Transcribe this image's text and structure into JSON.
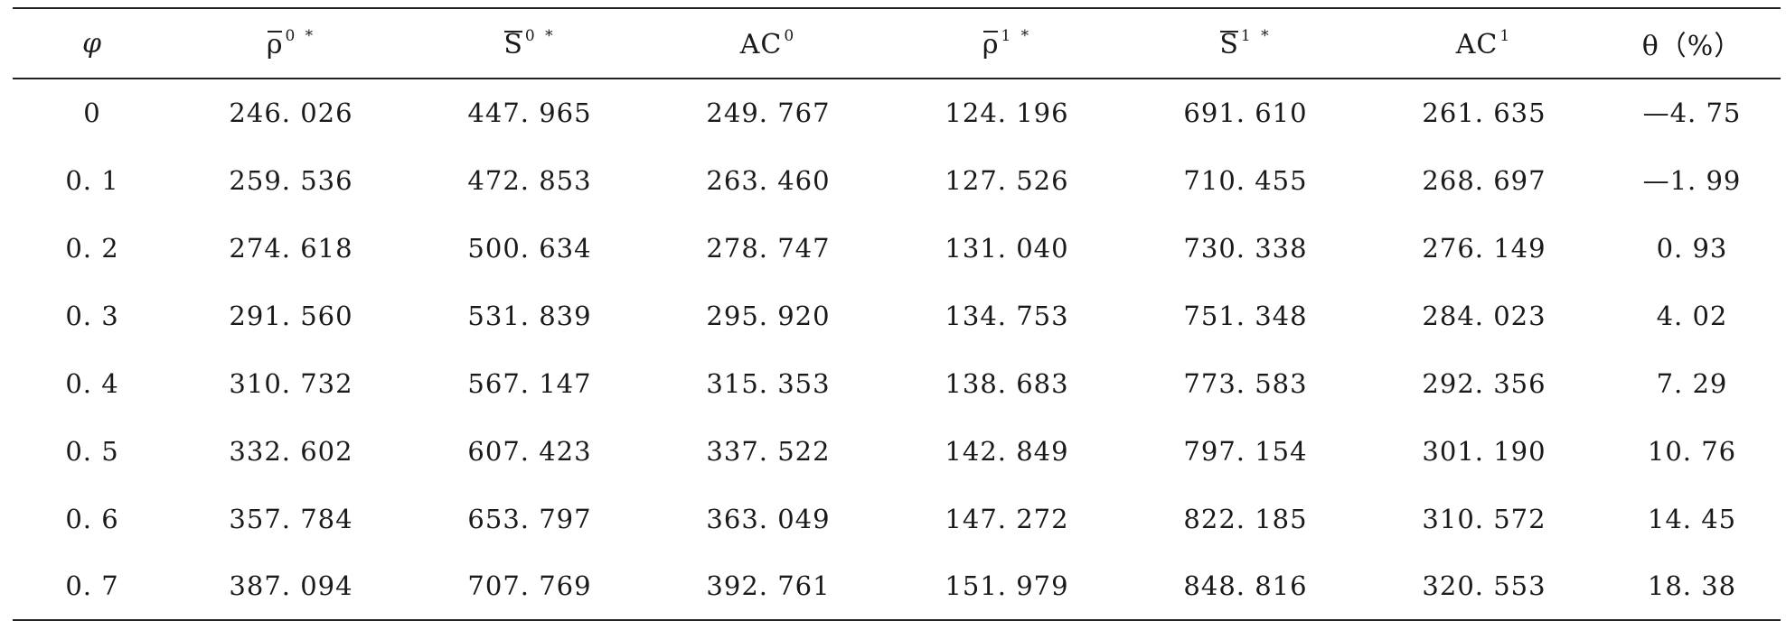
{
  "table": {
    "headers": [
      {
        "base": "φ",
        "sup": "",
        "overline": false
      },
      {
        "base": "ρ",
        "sup": "0 *",
        "overline": true
      },
      {
        "base": "S",
        "sup": "0 *",
        "overline": true
      },
      {
        "base": "AC",
        "sup": "0",
        "overline": false
      },
      {
        "base": "ρ",
        "sup": "1 *",
        "overline": true
      },
      {
        "base": "S",
        "sup": "1 *",
        "overline": true
      },
      {
        "base": "AC",
        "sup": "1",
        "overline": false
      },
      {
        "base": "θ（%）",
        "sup": "",
        "overline": false
      }
    ],
    "rows": [
      [
        "0",
        "246. 026",
        "447. 965",
        "249. 767",
        "124. 196",
        "691. 610",
        "261. 635",
        "—4. 75"
      ],
      [
        "0. 1",
        "259. 536",
        "472. 853",
        "263. 460",
        "127. 526",
        "710. 455",
        "268. 697",
        "—1. 99"
      ],
      [
        "0. 2",
        "274. 618",
        "500. 634",
        "278. 747",
        "131. 040",
        "730. 338",
        "276. 149",
        "0. 93"
      ],
      [
        "0. 3",
        "291. 560",
        "531. 839",
        "295. 920",
        "134. 753",
        "751. 348",
        "284. 023",
        "4. 02"
      ],
      [
        "0. 4",
        "310. 732",
        "567. 147",
        "315. 353",
        "138. 683",
        "773. 583",
        "292. 356",
        "7. 29"
      ],
      [
        "0. 5",
        "332. 602",
        "607. 423",
        "337. 522",
        "142. 849",
        "797. 154",
        "301. 190",
        "10. 76"
      ],
      [
        "0. 6",
        "357. 784",
        "653. 797",
        "363. 049",
        "147. 272",
        "822. 185",
        "310. 572",
        "14. 45"
      ],
      [
        "0. 7",
        "387. 094",
        "707. 769",
        "392. 761",
        "151. 979",
        "848. 816",
        "320. 553",
        "18. 38"
      ]
    ]
  }
}
